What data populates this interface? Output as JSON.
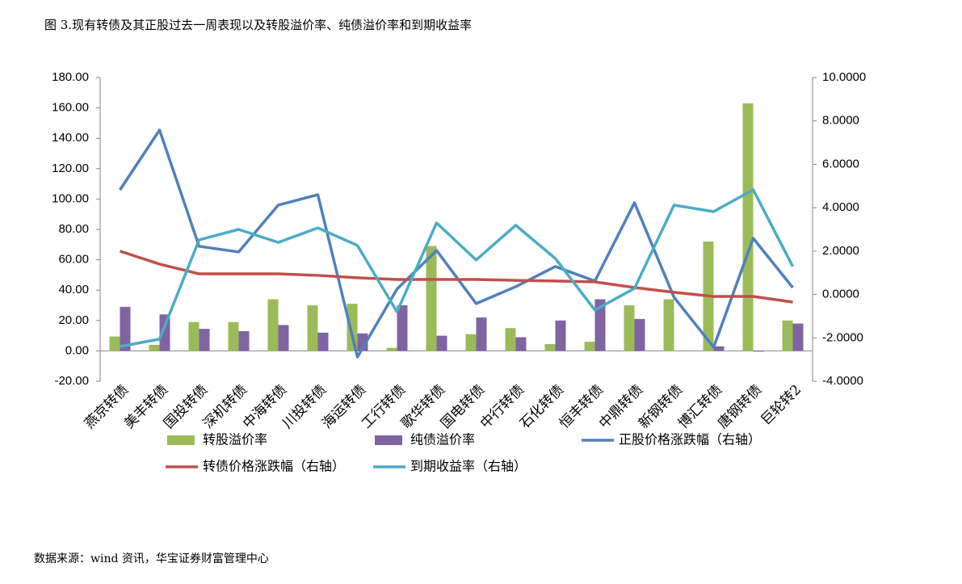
{
  "chart_data": {
    "type": "bar-line",
    "title": "图 3.现有转债及其正股过去一周表现以及转股溢价率、纯债溢价率和到期收益率",
    "source": "数据来源：wind 资讯，华宝证券财富管理中心",
    "categories": [
      "燕京转债",
      "美丰转债",
      "国投转债",
      "深机转债",
      "中海转债",
      "川投转债",
      "海运转债",
      "工行转债",
      "歌华转债",
      "国电转债",
      "中行转债",
      "石化转债",
      "恒丰转债",
      "中鼎转债",
      "新钢转债",
      "博汇转债",
      "唐钢转债",
      "巨轮转2"
    ],
    "ylim": [
      -20,
      180
    ],
    "yticks": [
      {
        "value": -20,
        "label": "-20.00"
      },
      {
        "value": 0,
        "label": "0.00"
      },
      {
        "value": 20,
        "label": "20.00"
      },
      {
        "value": 40,
        "label": "40.00"
      },
      {
        "value": 60,
        "label": "60.00"
      },
      {
        "value": 80,
        "label": "80.00"
      },
      {
        "value": 100,
        "label": "100.00"
      },
      {
        "value": 120,
        "label": "120.00"
      },
      {
        "value": 140,
        "label": "140.00"
      },
      {
        "value": 160,
        "label": "160.00"
      },
      {
        "value": 180,
        "label": "180.00"
      }
    ],
    "y2lim": [
      -4,
      10
    ],
    "y2ticks": [
      {
        "value": -4,
        "label": "-4.0000"
      },
      {
        "value": -2,
        "label": "-2.0000"
      },
      {
        "value": 0,
        "label": "0.0000"
      },
      {
        "value": 2,
        "label": "2.0000"
      },
      {
        "value": 4,
        "label": "4.0000"
      },
      {
        "value": 6,
        "label": "6.0000"
      },
      {
        "value": 8,
        "label": "8.0000"
      },
      {
        "value": 10,
        "label": "10.0000"
      }
    ],
    "grid": false,
    "series": [
      {
        "name": "转股溢价率",
        "type": "bar",
        "color": "#9bbb59",
        "values": [
          9.5,
          4,
          19,
          19,
          34,
          30,
          31,
          2,
          69,
          11,
          15,
          4.5,
          6,
          30,
          34,
          72,
          163,
          20
        ]
      },
      {
        "name": "纯债溢价率",
        "type": "bar",
        "color": "#8064a2",
        "values": [
          29,
          24,
          14.5,
          13,
          17,
          12,
          11.5,
          30,
          10,
          22,
          9,
          20,
          34,
          21,
          0,
          3,
          -0.5,
          18
        ]
      },
      {
        "name": "正股价格涨跌幅（右轴）",
        "type": "line",
        "axis": "y2",
        "color": "#4f81bd",
        "values": [
          4.82,
          7.58,
          2.22,
          1.96,
          4.12,
          4.6,
          -2.88,
          0.25,
          2.03,
          -0.42,
          0.36,
          1.29,
          0.62,
          4.23,
          -0.13,
          -2.43,
          2.59,
          0.32
        ]
      },
      {
        "name": "转债价格涨跌幅（右轴）",
        "type": "line",
        "axis": "y2",
        "color": "#c0504d",
        "values": [
          2.0,
          1.4,
          0.95,
          0.95,
          0.95,
          0.88,
          0.77,
          0.69,
          0.69,
          0.69,
          0.65,
          0.62,
          0.58,
          0.32,
          0.1,
          -0.09,
          -0.09,
          -0.35
        ]
      },
      {
        "name": "到期收益率（右轴）",
        "type": "line",
        "axis": "y2",
        "color": "#4bacc6",
        "values": [
          -2.4,
          -2.06,
          2.52,
          3.0,
          2.4,
          3.07,
          2.26,
          -0.8,
          3.3,
          1.59,
          3.19,
          1.66,
          -0.72,
          0.28,
          4.12,
          3.82,
          4.83,
          1.29
        ]
      }
    ]
  }
}
